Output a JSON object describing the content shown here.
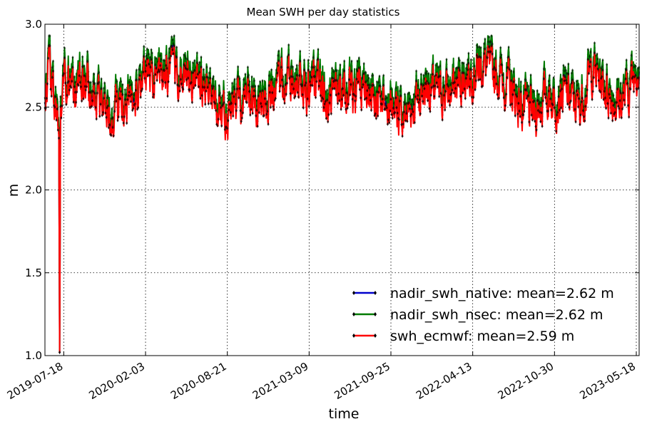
{
  "chart_data": {
    "type": "line",
    "title": "Mean SWH per day statistics",
    "xlabel": "time",
    "ylabel": "m",
    "ylim": [
      1.0,
      3.0
    ],
    "xlim": [
      "2019-06-02",
      "2023-05-25"
    ],
    "yticks": [
      "1.0",
      "1.5",
      "2.0",
      "2.5",
      "3.0"
    ],
    "xticks": [
      "2019-07-18",
      "2020-02-03",
      "2020-08-21",
      "2021-03-09",
      "2021-09-25",
      "2022-04-13",
      "2022-10-30",
      "2023-05-18"
    ],
    "grid": true,
    "legend_position": "lower-right",
    "x_start": "2019-06-02",
    "x_end": "2023-05-25",
    "series": [
      {
        "name": "nadir_swh_native: mean=2.62 m",
        "color": "#0000cc",
        "mean": 2.62
      },
      {
        "name": "nadir_swh_nsec: mean=2.62 m",
        "color": "#007a00",
        "mean": 2.62
      },
      {
        "name": "swh_ecmwf: mean=2.59 m",
        "color": "#ff0000",
        "mean": 2.59
      }
    ],
    "anchors": [
      [
        "2019-06-02",
        2.6
      ],
      [
        "2019-06-12",
        2.8
      ],
      [
        "2019-06-25",
        2.55
      ],
      [
        "2019-07-02",
        2.46
      ],
      [
        "2019-07-06",
        2.3
      ],
      [
        "2019-07-08",
        1.02
      ],
      [
        "2019-07-10",
        2.4
      ],
      [
        "2019-07-20",
        2.75
      ],
      [
        "2019-08-10",
        2.6
      ],
      [
        "2019-09-10",
        2.7
      ],
      [
        "2019-10-10",
        2.55
      ],
      [
        "2019-11-10",
        2.48
      ],
      [
        "2019-12-10",
        2.55
      ],
      [
        "2020-01-10",
        2.58
      ],
      [
        "2020-02-03",
        2.72
      ],
      [
        "2020-03-10",
        2.7
      ],
      [
        "2020-04-10",
        2.72
      ],
      [
        "2020-05-10",
        2.7
      ],
      [
        "2020-06-10",
        2.66
      ],
      [
        "2020-07-10",
        2.6
      ],
      [
        "2020-08-21",
        2.46
      ],
      [
        "2020-09-10",
        2.55
      ],
      [
        "2020-10-10",
        2.6
      ],
      [
        "2020-11-10",
        2.55
      ],
      [
        "2020-12-10",
        2.62
      ],
      [
        "2021-01-10",
        2.66
      ],
      [
        "2021-02-10",
        2.7
      ],
      [
        "2021-03-09",
        2.62
      ],
      [
        "2021-04-10",
        2.64
      ],
      [
        "2021-05-10",
        2.58
      ],
      [
        "2021-06-10",
        2.64
      ],
      [
        "2021-07-10",
        2.62
      ],
      [
        "2021-08-10",
        2.56
      ],
      [
        "2021-09-10",
        2.5
      ],
      [
        "2021-09-25",
        2.55
      ],
      [
        "2021-10-20",
        2.45
      ],
      [
        "2021-11-20",
        2.55
      ],
      [
        "2021-12-20",
        2.65
      ],
      [
        "2022-01-20",
        2.6
      ],
      [
        "2022-02-20",
        2.62
      ],
      [
        "2022-03-20",
        2.7
      ],
      [
        "2022-04-13",
        2.74
      ],
      [
        "2022-05-10",
        2.78
      ],
      [
        "2022-06-10",
        2.72
      ],
      [
        "2022-07-10",
        2.65
      ],
      [
        "2022-08-10",
        2.52
      ],
      [
        "2022-09-10",
        2.48
      ],
      [
        "2022-10-10",
        2.6
      ],
      [
        "2022-10-30",
        2.58
      ],
      [
        "2022-11-30",
        2.6
      ],
      [
        "2022-12-30",
        2.52
      ],
      [
        "2023-01-30",
        2.75
      ],
      [
        "2023-02-28",
        2.65
      ],
      [
        "2023-03-30",
        2.55
      ],
      [
        "2023-04-20",
        2.58
      ],
      [
        "2023-05-10",
        2.7
      ],
      [
        "2023-05-25",
        2.8
      ]
    ]
  }
}
